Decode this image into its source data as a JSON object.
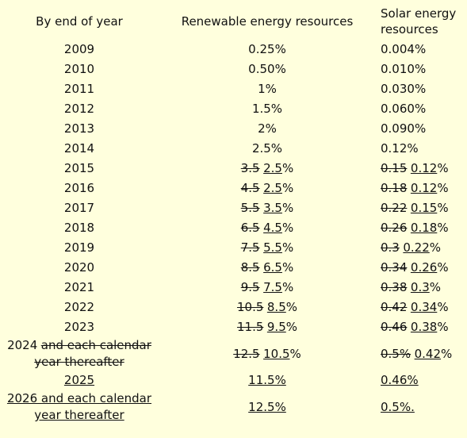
{
  "table": {
    "header": [
      "By end of year",
      "Renewable energy resources",
      "Solar energy resources"
    ],
    "rows": [
      [
        [
          {
            "text": "2009"
          }
        ],
        [
          {
            "text": "0.25%"
          }
        ],
        [
          {
            "text": "0.004%"
          }
        ]
      ],
      [
        [
          {
            "text": "2010"
          }
        ],
        [
          {
            "text": "0.50%"
          }
        ],
        [
          {
            "text": "0.010%"
          }
        ]
      ],
      [
        [
          {
            "text": "2011"
          }
        ],
        [
          {
            "text": "1%"
          }
        ],
        [
          {
            "text": "0.030%"
          }
        ]
      ],
      [
        [
          {
            "text": "2012"
          }
        ],
        [
          {
            "text": "1.5%"
          }
        ],
        [
          {
            "text": "0.060%"
          }
        ]
      ],
      [
        [
          {
            "text": "2013"
          }
        ],
        [
          {
            "text": "2%"
          }
        ],
        [
          {
            "text": "0.090%"
          }
        ]
      ],
      [
        [
          {
            "text": "2014"
          }
        ],
        [
          {
            "text": "2.5%"
          }
        ],
        [
          {
            "text": "0.12%"
          }
        ]
      ],
      [
        [
          {
            "text": "2015"
          }
        ],
        [
          {
            "text": "3.5",
            "mark": "strike"
          },
          {
            "text": "2.5",
            "mark": "underline"
          },
          {
            "text": "%"
          }
        ],
        [
          {
            "text": "0.15",
            "mark": "strike"
          },
          {
            "text": "0.12",
            "mark": "underline"
          },
          {
            "text": "%"
          }
        ]
      ],
      [
        [
          {
            "text": "2016"
          }
        ],
        [
          {
            "text": "4.5",
            "mark": "strike"
          },
          {
            "text": "2.5",
            "mark": "underline"
          },
          {
            "text": "%"
          }
        ],
        [
          {
            "text": "0.18",
            "mark": "strike"
          },
          {
            "text": "0.12",
            "mark": "underline"
          },
          {
            "text": "%"
          }
        ]
      ],
      [
        [
          {
            "text": "2017"
          }
        ],
        [
          {
            "text": "5.5",
            "mark": "strike"
          },
          {
            "text": "3.5",
            "mark": "underline"
          },
          {
            "text": "%"
          }
        ],
        [
          {
            "text": "0.22",
            "mark": "strike"
          },
          {
            "text": "0.15",
            "mark": "underline"
          },
          {
            "text": "%"
          }
        ]
      ],
      [
        [
          {
            "text": "2018"
          }
        ],
        [
          {
            "text": "6.5",
            "mark": "strike"
          },
          {
            "text": "4.5",
            "mark": "underline"
          },
          {
            "text": "%"
          }
        ],
        [
          {
            "text": "0.26",
            "mark": "strike"
          },
          {
            "text": "0.18",
            "mark": "underline"
          },
          {
            "text": "%"
          }
        ]
      ],
      [
        [
          {
            "text": "2019"
          }
        ],
        [
          {
            "text": "7.5",
            "mark": "strike"
          },
          {
            "text": "5.5",
            "mark": "underline"
          },
          {
            "text": "%"
          }
        ],
        [
          {
            "text": "0.3",
            "mark": "strike"
          },
          {
            "text": "0.22",
            "mark": "underline"
          },
          {
            "text": "%"
          }
        ]
      ],
      [
        [
          {
            "text": "2020"
          }
        ],
        [
          {
            "text": "8.5",
            "mark": "strike"
          },
          {
            "text": "6.5",
            "mark": "underline"
          },
          {
            "text": "%"
          }
        ],
        [
          {
            "text": "0.34",
            "mark": "strike"
          },
          {
            "text": "0.26",
            "mark": "underline"
          },
          {
            "text": "%"
          }
        ]
      ],
      [
        [
          {
            "text": "2021"
          }
        ],
        [
          {
            "text": "9.5",
            "mark": "strike"
          },
          {
            "text": "7.5",
            "mark": "underline"
          },
          {
            "text": "%"
          }
        ],
        [
          {
            "text": "0.38",
            "mark": "strike"
          },
          {
            "text": "0.3",
            "mark": "underline"
          },
          {
            "text": "%"
          }
        ]
      ],
      [
        [
          {
            "text": "2022"
          }
        ],
        [
          {
            "text": "10.5",
            "mark": "strike"
          },
          {
            "text": "8.5",
            "mark": "underline"
          },
          {
            "text": "%"
          }
        ],
        [
          {
            "text": "0.42",
            "mark": "strike"
          },
          {
            "text": "0.34",
            "mark": "underline"
          },
          {
            "text": "%"
          }
        ]
      ],
      [
        [
          {
            "text": "2023"
          }
        ],
        [
          {
            "text": "11.5",
            "mark": "strike"
          },
          {
            "text": "9.5",
            "mark": "underline"
          },
          {
            "text": "%"
          }
        ],
        [
          {
            "text": "0.46",
            "mark": "strike"
          },
          {
            "text": "0.38",
            "mark": "underline"
          },
          {
            "text": "%"
          }
        ]
      ],
      [
        [
          {
            "text": "2024"
          },
          {
            "text": "and each calendar year thereafter",
            "mark": "strike"
          }
        ],
        [
          {
            "text": "12.5",
            "mark": "strike"
          },
          {
            "text": "10.5",
            "mark": "underline"
          },
          {
            "text": "%"
          }
        ],
        [
          {
            "text": "0.5%",
            "mark": "strike"
          },
          {
            "text": "0.42",
            "mark": "underline"
          },
          {
            "text": "%"
          }
        ]
      ],
      [
        [
          {
            "text": "2025",
            "mark": "underline"
          }
        ],
        [
          {
            "text": "11.5%",
            "mark": "underline"
          }
        ],
        [
          {
            "text": "0.46%",
            "mark": "underline"
          }
        ]
      ],
      [
        [
          {
            "text": "2026 and each calendar year thereafter",
            "mark": "underline"
          }
        ],
        [
          {
            "text": "12.5%",
            "mark": "underline"
          }
        ],
        [
          {
            "text": "0.5%.",
            "mark": "underline"
          }
        ]
      ]
    ]
  }
}
